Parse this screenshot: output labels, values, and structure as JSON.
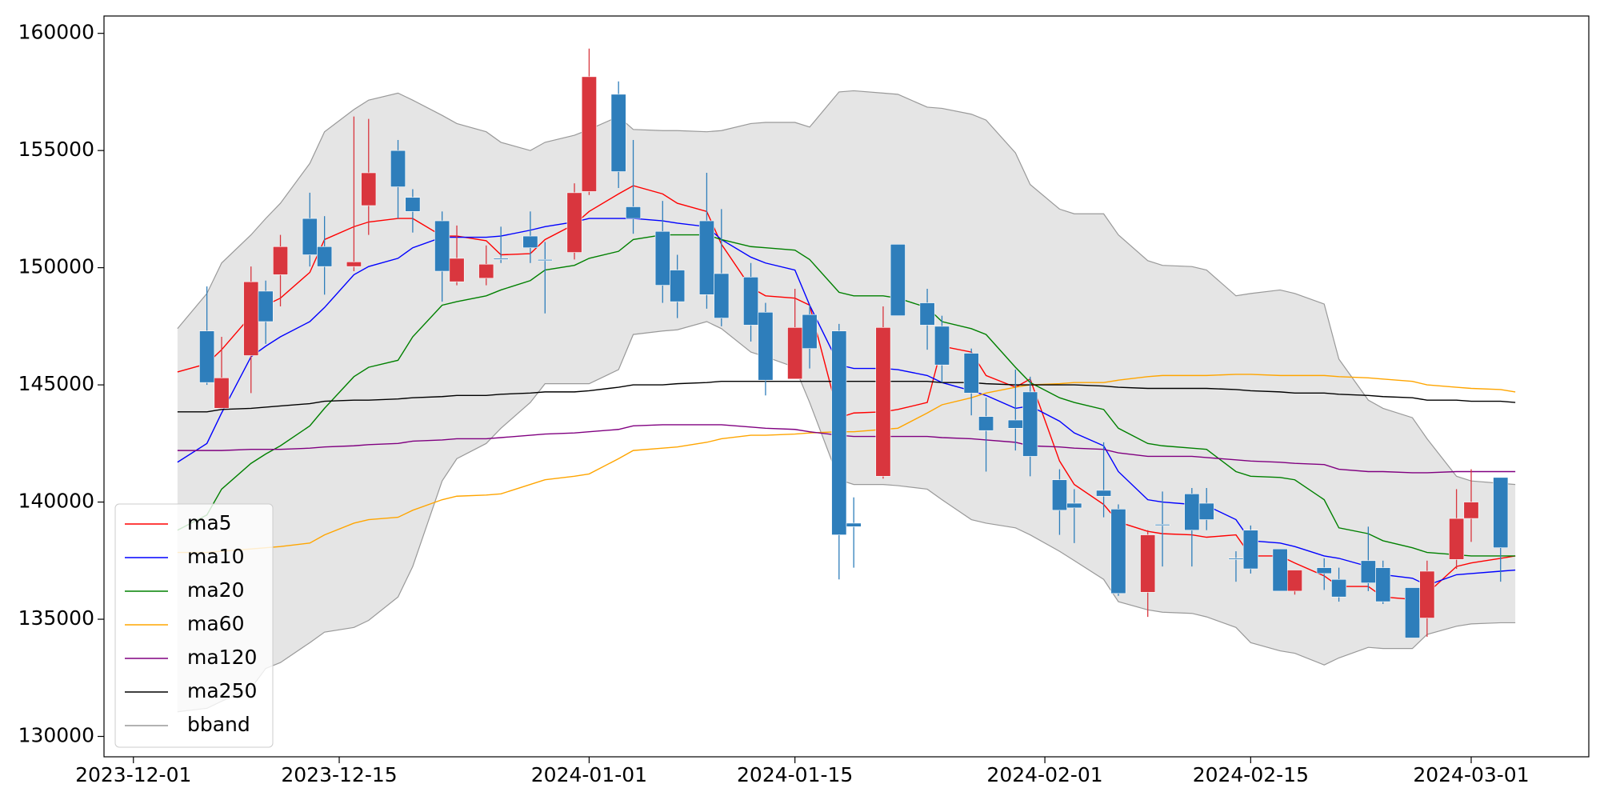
{
  "chart_data": {
    "type": "candlestick",
    "x": [
      "2023-12-04",
      "2023-12-06",
      "2023-12-07",
      "2023-12-09",
      "2023-12-10",
      "2023-12-11",
      "2023-12-13",
      "2023-12-14",
      "2023-12-16",
      "2023-12-17",
      "2023-12-19",
      "2023-12-20",
      "2023-12-22",
      "2023-12-23",
      "2023-12-25",
      "2023-12-26",
      "2023-12-28",
      "2023-12-29",
      "2023-12-31",
      "2024-01-01",
      "2024-01-03",
      "2024-01-04",
      "2024-01-06",
      "2024-01-07",
      "2024-01-09",
      "2024-01-10",
      "2024-01-12",
      "2024-01-13",
      "2024-01-15",
      "2024-01-16",
      "2024-01-18",
      "2024-01-19",
      "2024-01-21",
      "2024-01-22",
      "2024-01-24",
      "2024-01-25",
      "2024-01-27",
      "2024-01-28",
      "2024-01-30",
      "2024-01-31",
      "2024-02-02",
      "2024-02-03",
      "2024-02-05",
      "2024-02-06",
      "2024-02-08",
      "2024-02-09",
      "2024-02-11",
      "2024-02-12",
      "2024-02-14",
      "2024-02-15",
      "2024-02-17",
      "2024-02-18",
      "2024-02-20",
      "2024-02-21",
      "2024-02-23",
      "2024-02-24",
      "2024-02-26",
      "2024-02-27",
      "2024-02-29",
      "2024-03-01",
      "2024-03-03",
      "2024-03-04"
    ],
    "xlim": [
      "2023-11-29",
      "2024-03-09"
    ],
    "xticks": [
      "2023-12-01",
      "2023-12-15",
      "2024-01-01",
      "2024-01-15",
      "2024-02-01",
      "2024-02-15",
      "2024-03-01"
    ],
    "ylim": [
      129130,
      160740
    ],
    "yticks": [
      130000,
      135000,
      140000,
      145000,
      150000,
      155000,
      160000
    ],
    "up_color": "#d9363e",
    "down_color": "#2e7ebb",
    "legend": "lower left",
    "candles": {
      "open": [
        null,
        147300,
        144000,
        146250,
        149000,
        149700,
        152100,
        150900,
        150050,
        152650,
        155000,
        153000,
        152000,
        149400,
        149550,
        150400,
        151350,
        150350,
        150650,
        153250,
        157400,
        152600,
        151550,
        149900,
        152000,
        149750,
        149600,
        148100,
        145250,
        148000,
        147300,
        139100,
        141100,
        151000,
        148500,
        147500,
        146350,
        143650,
        143500,
        144700,
        140950,
        139950,
        140500,
        139700,
        136150,
        139050,
        140350,
        139950,
        137600,
        138800,
        138000,
        136200,
        137200,
        136700,
        137500,
        137200,
        136350,
        135050,
        137550,
        139300,
        141050,
        null
      ],
      "high": [
        null,
        149200,
        147050,
        150050,
        149450,
        151400,
        153200,
        152200,
        156450,
        156350,
        155450,
        153350,
        152400,
        151800,
        150950,
        151750,
        152400,
        151100,
        153600,
        159350,
        157950,
        155450,
        152850,
        150550,
        154050,
        152500,
        150200,
        148500,
        149100,
        148400,
        147600,
        140200,
        148350,
        151000,
        149100,
        147950,
        146550,
        144450,
        145650,
        145350,
        141400,
        140550,
        142550,
        139900,
        138800,
        140450,
        140600,
        140600,
        137900,
        139000,
        138000,
        137100,
        137600,
        137200,
        138950,
        137500,
        136350,
        137500,
        140550,
        141400,
        141050,
        null
      ],
      "low": [
        null,
        145000,
        144000,
        144650,
        146750,
        148350,
        150050,
        148850,
        149850,
        151400,
        152100,
        151500,
        148550,
        149250,
        149250,
        150200,
        150200,
        148050,
        150350,
        153100,
        153400,
        151450,
        148500,
        147850,
        148250,
        147500,
        146850,
        144550,
        145250,
        145700,
        136700,
        137200,
        141000,
        147950,
        146500,
        145100,
        143700,
        141300,
        142200,
        141100,
        138600,
        138250,
        139350,
        136000,
        135100,
        137250,
        137250,
        138800,
        136600,
        136950,
        136200,
        136050,
        136250,
        135750,
        136200,
        135650,
        134200,
        134250,
        137150,
        138300,
        136600,
        null
      ],
      "close": [
        null,
        145100,
        145300,
        149400,
        147700,
        150900,
        150550,
        150050,
        150250,
        154050,
        153450,
        152400,
        149850,
        150400,
        150150,
        150350,
        150850,
        150300,
        153200,
        158150,
        154100,
        152100,
        149250,
        148550,
        148850,
        147850,
        147550,
        145200,
        147450,
        146550,
        138600,
        138950,
        147450,
        147950,
        147550,
        145850,
        144650,
        143050,
        143150,
        141950,
        139650,
        139750,
        140250,
        136100,
        138600,
        139000,
        138800,
        139250,
        137550,
        137150,
        136200,
        137100,
        136950,
        135950,
        136550,
        135750,
        134200,
        137050,
        139300,
        140000,
        138050,
        null
      ]
    },
    "series": [
      {
        "name": "ma5",
        "color": "red",
        "values": [
          145550,
          145900,
          146500,
          147950,
          148400,
          148700,
          149800,
          151200,
          151750,
          151950,
          152100,
          152100,
          151350,
          151350,
          151150,
          150550,
          150600,
          151200,
          151850,
          152400,
          153150,
          153500,
          153150,
          152750,
          152400,
          151000,
          149150,
          148800,
          148700,
          148400,
          143600,
          143800,
          143850,
          143950,
          144250,
          146650,
          146400,
          145400,
          144900,
          145250,
          141750,
          140750,
          139900,
          139150,
          138750,
          138650,
          138600,
          138500,
          138600,
          137700,
          137700,
          137400,
          136850,
          136400,
          136400,
          135950,
          135850,
          136100,
          137250,
          137400,
          137600,
          137700
        ]
      },
      {
        "name": "ma10",
        "color": "blue",
        "values": [
          141700,
          142500,
          143800,
          146200,
          146650,
          147050,
          147700,
          148300,
          149700,
          150050,
          150400,
          150850,
          151300,
          151300,
          151300,
          151350,
          151600,
          151750,
          151950,
          152100,
          152100,
          152100,
          152000,
          151900,
          151750,
          151200,
          150450,
          150200,
          149900,
          148400,
          145850,
          145700,
          145700,
          145650,
          145400,
          145100,
          144750,
          144550,
          144000,
          144100,
          143450,
          142950,
          142400,
          141300,
          140100,
          140000,
          139900,
          139850,
          139250,
          138350,
          138250,
          138100,
          137700,
          137600,
          137250,
          136900,
          136750,
          136450,
          136900,
          136950,
          137050,
          137100
        ]
      },
      {
        "name": "ma20",
        "color": "green",
        "values": [
          138800,
          139450,
          140550,
          141650,
          142050,
          142400,
          143250,
          144000,
          145350,
          145750,
          146050,
          147050,
          148400,
          148550,
          148800,
          149050,
          149450,
          149900,
          150100,
          150400,
          150700,
          151200,
          151400,
          151400,
          151400,
          151200,
          150900,
          150850,
          150750,
          150350,
          148950,
          148800,
          148800,
          148700,
          148300,
          147700,
          147400,
          147150,
          145750,
          145100,
          144450,
          144250,
          143950,
          143150,
          142500,
          142400,
          142300,
          142250,
          141300,
          141100,
          141050,
          140950,
          140100,
          138900,
          138650,
          138350,
          138050,
          137850,
          137750,
          137700,
          137700,
          137700
        ]
      },
      {
        "name": "ma60",
        "color": "orange",
        "values": [
          137850,
          137850,
          137900,
          138000,
          138050,
          138100,
          138250,
          138600,
          139100,
          139250,
          139350,
          139650,
          140100,
          140250,
          140300,
          140350,
          140750,
          140950,
          141100,
          141200,
          141850,
          142200,
          142300,
          142350,
          142550,
          142700,
          142850,
          142850,
          142900,
          142950,
          143000,
          143000,
          143100,
          143150,
          143800,
          144150,
          144450,
          144650,
          144900,
          145000,
          145050,
          145100,
          145100,
          145200,
          145350,
          145400,
          145400,
          145400,
          145450,
          145450,
          145400,
          145400,
          145400,
          145350,
          145300,
          145250,
          145150,
          145000,
          144900,
          144850,
          144800,
          144700
        ]
      },
      {
        "name": "ma120",
        "color": "purple",
        "values": [
          142200,
          142200,
          142200,
          142250,
          142250,
          142250,
          142300,
          142350,
          142400,
          142450,
          142500,
          142600,
          142650,
          142700,
          142700,
          142750,
          142850,
          142900,
          142950,
          143000,
          143100,
          143250,
          143300,
          143300,
          143300,
          143300,
          143200,
          143150,
          143100,
          143000,
          142850,
          142800,
          142800,
          142800,
          142800,
          142750,
          142700,
          142650,
          142550,
          142400,
          142350,
          142300,
          142250,
          142100,
          141950,
          141950,
          141950,
          141900,
          141800,
          141750,
          141700,
          141650,
          141600,
          141400,
          141300,
          141300,
          141250,
          141250,
          141300,
          141300,
          141300,
          141300
        ]
      },
      {
        "name": "ma250",
        "color": "black",
        "values": [
          143850,
          143850,
          143950,
          144000,
          144050,
          144100,
          144200,
          144300,
          144350,
          144350,
          144400,
          144450,
          144500,
          144550,
          144550,
          144600,
          144650,
          144700,
          144700,
          144750,
          144900,
          145000,
          145000,
          145050,
          145100,
          145150,
          145150,
          145150,
          145150,
          145150,
          145150,
          145150,
          145150,
          145150,
          145150,
          145100,
          145100,
          145050,
          145000,
          145000,
          145000,
          145000,
          144950,
          144900,
          144850,
          144850,
          144850,
          144850,
          144800,
          144750,
          144700,
          144650,
          144650,
          144600,
          144550,
          144500,
          144450,
          144350,
          144350,
          144300,
          144300,
          144250
        ]
      }
    ],
    "bband": {
      "name": "bband",
      "color": "#999999",
      "fill": "#e5e5e5",
      "upper": [
        147400,
        148900,
        150200,
        151400,
        152100,
        152750,
        154450,
        155800,
        156750,
        157150,
        157450,
        157150,
        156500,
        156150,
        155800,
        155350,
        155000,
        155350,
        155650,
        155900,
        156450,
        155900,
        155850,
        155850,
        155800,
        155850,
        156150,
        156200,
        156200,
        156000,
        157500,
        157550,
        157450,
        157400,
        156850,
        156800,
        156550,
        156300,
        154900,
        153550,
        152500,
        152300,
        152300,
        151400,
        150300,
        150100,
        150050,
        149900,
        148800,
        148900,
        149050,
        148900,
        148450,
        146100,
        144350,
        144000,
        143600,
        142700,
        141100,
        140900,
        140800,
        140750
      ],
      "lower": [
        131050,
        131200,
        131500,
        132050,
        132900,
        133150,
        134000,
        134450,
        134650,
        134950,
        135950,
        137250,
        140900,
        141850,
        142500,
        143150,
        144250,
        145050,
        145050,
        145050,
        145650,
        147150,
        147300,
        147350,
        147700,
        147400,
        146400,
        146200,
        145750,
        144250,
        140950,
        140750,
        140750,
        140700,
        140550,
        140100,
        139250,
        139100,
        138900,
        138600,
        137900,
        137500,
        136700,
        135750,
        135400,
        135300,
        135250,
        135100,
        134650,
        134000,
        133650,
        133550,
        133050,
        133350,
        133800,
        133750,
        133750,
        134350,
        134700,
        134800,
        134850,
        134850
      ]
    }
  }
}
